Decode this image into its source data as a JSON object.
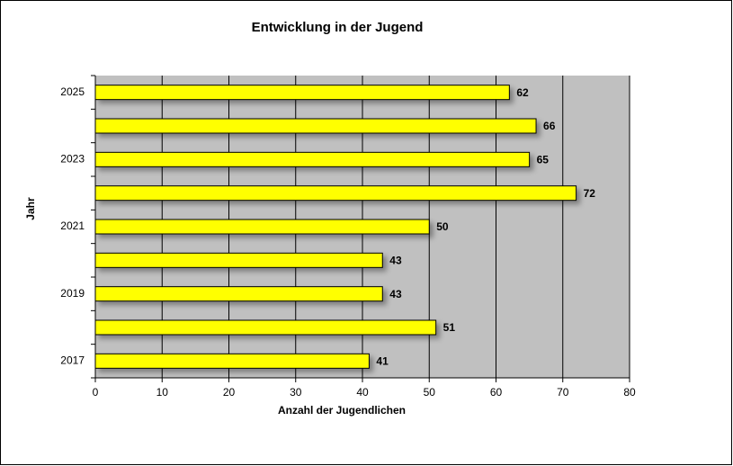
{
  "chart_data": {
    "type": "barh",
    "title": "Entwicklung in der Jugend",
    "x_label": "Anzahl der Jugendlichen",
    "y_label": "Jahr",
    "categories": [
      "2017",
      null,
      "2019",
      null,
      "2021",
      null,
      "2023",
      null,
      "2025"
    ],
    "values": [
      41,
      51,
      43,
      43,
      50,
      72,
      65,
      66,
      62
    ],
    "color": "#ffff00",
    "xlim": [
      0,
      80
    ],
    "xticks": [
      0,
      10,
      20,
      30,
      40,
      50,
      60,
      70,
      80
    ],
    "grid": true
  }
}
